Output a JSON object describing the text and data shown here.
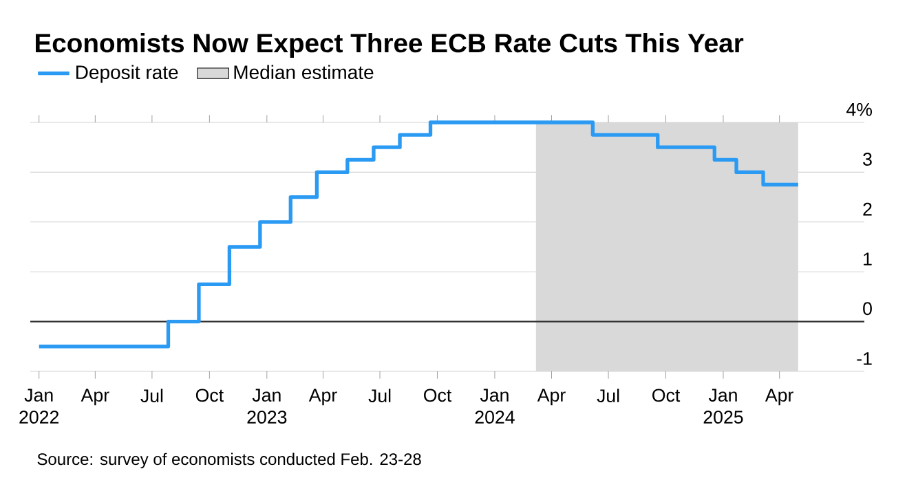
{
  "chart_data": {
    "type": "step",
    "title": "Economists Now Expect Three ECB Rate Cuts This Year",
    "annotations": [
      "Source: survey of economists conducted Feb. 23-28"
    ],
    "series": [
      {
        "name": "Deposit rate",
        "color": "#2b9af3",
        "x": [
          "2022-01-01",
          "2022-07-27",
          "2022-09-14",
          "2022-11-02",
          "2022-12-21",
          "2023-02-08",
          "2023-03-22",
          "2023-05-10",
          "2023-06-21",
          "2023-08-02",
          "2023-09-20",
          "2024-06-06",
          "2024-09-18",
          "2024-12-18",
          "2025-01-22",
          "2025-03-06",
          "2025-05-01"
        ],
        "values": [
          -0.5,
          0,
          0.75,
          1.5,
          2.0,
          2.5,
          3.0,
          3.25,
          3.5,
          3.75,
          4.0,
          3.75,
          3.5,
          3.25,
          3.0,
          2.75,
          2.75
        ]
      }
    ],
    "bands": [
      {
        "axis": "x",
        "from": "2024-03-07",
        "to": "2025-05-01",
        "label": "Median estimate",
        "color": "#d9d9d9"
      }
    ],
    "ref_lines": [
      {
        "axis": "y",
        "value": 0,
        "color": "#333333"
      }
    ],
    "xlim": [
      "2021-12-18",
      "2025-08-15"
    ],
    "xticks": [
      {
        "value": "2022-01-01",
        "label": "Jan\n2022"
      },
      {
        "value": "2022-04-01",
        "label": "Apr"
      },
      {
        "value": "2022-07-01",
        "label": "Jul"
      },
      {
        "value": "2022-10-01",
        "label": "Oct"
      },
      {
        "value": "2023-01-01",
        "label": "Jan\n2023"
      },
      {
        "value": "2023-04-01",
        "label": "Apr"
      },
      {
        "value": "2023-07-01",
        "label": "Jul"
      },
      {
        "value": "2023-10-01",
        "label": "Oct"
      },
      {
        "value": "2024-01-01",
        "label": "Jan\n2024"
      },
      {
        "value": "2024-04-01",
        "label": "Apr"
      },
      {
        "value": "2024-07-01",
        "label": "Jul"
      },
      {
        "value": "2024-10-01",
        "label": "Oct"
      },
      {
        "value": "2025-01-01",
        "label": "Jan\n2025"
      },
      {
        "value": "2025-04-01",
        "label": "Apr"
      }
    ],
    "ylim": [
      -1,
      4
    ],
    "yticks": [
      -1,
      0,
      1,
      2,
      3,
      {
        "value": 4,
        "label": "4%"
      }
    ],
    "grid": "y",
    "legend": "top left"
  }
}
